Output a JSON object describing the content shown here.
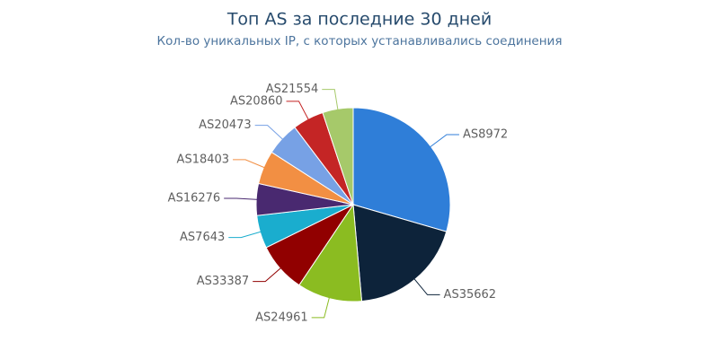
{
  "chart_data": {
    "type": "pie",
    "title": "Топ AS за последние 30 дней",
    "subtitle": "Кол-во уникальных IP, с которых устанавливались соединения",
    "categories": [
      "AS8972",
      "AS35662",
      "AS24961",
      "AS33387",
      "AS7643",
      "AS16276",
      "AS18403",
      "AS20473",
      "AS20860",
      "AS21554"
    ],
    "values": [
      29.5,
      19.1,
      10.8,
      8.3,
      5.5,
      5.3,
      5.6,
      5.6,
      5.2,
      5.1
    ],
    "colors": [
      "#2f7ed8",
      "#0d233a",
      "#8bbc21",
      "#910000",
      "#1aadce",
      "#492970",
      "#f28f43",
      "#77a1e5",
      "#c42525",
      "#a6c96a"
    ]
  }
}
